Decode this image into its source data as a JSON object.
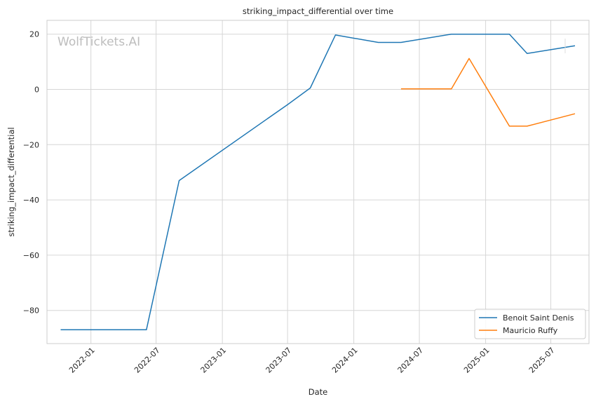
{
  "watermark": "WolfTickets.AI",
  "chart_data": {
    "type": "line",
    "title": "striking_impact_differential over time",
    "xlabel": "Date",
    "ylabel": "striking_impact_differential",
    "x_axis_type": "date",
    "xlim": [
      "2021-09-01",
      "2025-10-15"
    ],
    "ylim": [
      -92,
      25
    ],
    "x_ticks": [
      "2022-01",
      "2022-07",
      "2023-01",
      "2023-07",
      "2024-01",
      "2024-07",
      "2025-01",
      "2025-07"
    ],
    "y_ticks": [
      20,
      0,
      -20,
      -40,
      -60,
      -80
    ],
    "y_tick_labels": [
      "20",
      "0",
      "−20",
      "−40",
      "−60",
      "−80"
    ],
    "grid": true,
    "legend_position": "bottom-right",
    "series": [
      {
        "name": "Benoit Saint Denis",
        "color": "#1f77b4",
        "points": [
          {
            "x": "2021-10-09",
            "y": -87
          },
          {
            "x": "2022-06-04",
            "y": -87
          },
          {
            "x": "2022-09-03",
            "y": -33
          },
          {
            "x": "2023-07-01",
            "y": -5.5
          },
          {
            "x": "2023-09-02",
            "y": 0.5
          },
          {
            "x": "2023-11-11",
            "y": 19.7
          },
          {
            "x": "2024-03-09",
            "y": 17
          },
          {
            "x": "2024-05-11",
            "y": 17
          },
          {
            "x": "2024-09-28",
            "y": 20
          },
          {
            "x": "2025-03-08",
            "y": 20
          },
          {
            "x": "2025-04-26",
            "y": 13
          },
          {
            "x": "2025-09-06",
            "y": 15.8
          }
        ]
      },
      {
        "name": "Mauricio Ruffy",
        "color": "#ff7f0e",
        "points": [
          {
            "x": "2024-05-11",
            "y": 0.2
          },
          {
            "x": "2024-09-28",
            "y": 0.2
          },
          {
            "x": "2024-11-16",
            "y": 11.2
          },
          {
            "x": "2025-03-08",
            "y": -13.3
          },
          {
            "x": "2025-04-26",
            "y": -13.3
          },
          {
            "x": "2025-09-06",
            "y": -8.8
          }
        ]
      }
    ]
  }
}
